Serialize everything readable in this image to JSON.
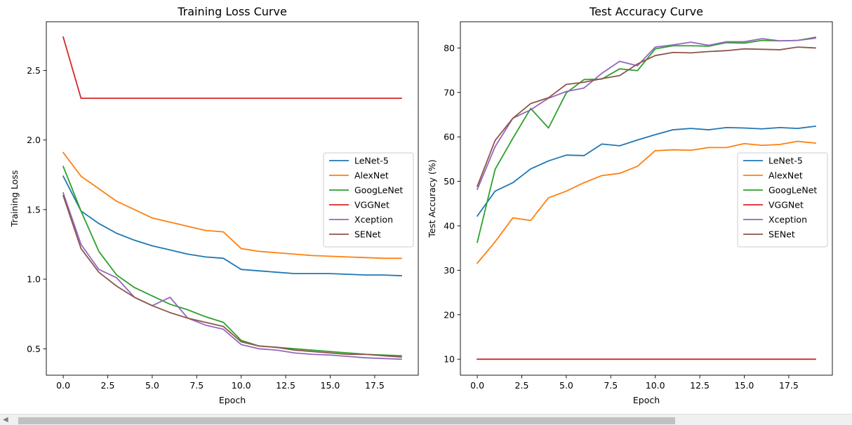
{
  "chart_data": [
    {
      "type": "line",
      "title": "Training Loss Curve",
      "xlabel": "Epoch",
      "ylabel": "Training Loss",
      "xlim": [
        -0.95,
        19.95
      ],
      "ylim": [
        0.31,
        2.85
      ],
      "xticks": [
        0.0,
        2.5,
        5.0,
        7.5,
        10.0,
        12.5,
        15.0,
        17.5
      ],
      "xtick_labels": [
        "0.0",
        "2.5",
        "5.0",
        "7.5",
        "10.0",
        "12.5",
        "15.0",
        "17.5"
      ],
      "yticks": [
        0.5,
        1.0,
        1.5,
        2.0,
        2.5
      ],
      "ytick_labels": [
        "0.5",
        "1.0",
        "1.5",
        "2.0",
        "2.5"
      ],
      "grid": false,
      "legend": "center-right",
      "x": [
        0,
        1,
        2,
        3,
        4,
        5,
        6,
        7,
        8,
        9,
        10,
        11,
        12,
        13,
        14,
        15,
        16,
        17,
        18,
        19
      ],
      "series": [
        {
          "name": "LeNet-5",
          "color": "#1f77b4",
          "values": [
            1.74,
            1.49,
            1.4,
            1.33,
            1.28,
            1.24,
            1.21,
            1.18,
            1.16,
            1.15,
            1.07,
            1.06,
            1.05,
            1.04,
            1.04,
            1.04,
            1.035,
            1.03,
            1.03,
            1.025
          ]
        },
        {
          "name": "AlexNet",
          "color": "#ff7f0e",
          "values": [
            1.91,
            1.74,
            1.65,
            1.56,
            1.5,
            1.44,
            1.41,
            1.38,
            1.35,
            1.34,
            1.22,
            1.2,
            1.19,
            1.18,
            1.17,
            1.165,
            1.16,
            1.155,
            1.15,
            1.15
          ]
        },
        {
          "name": "GoogLeNet",
          "color": "#2ca02c",
          "values": [
            1.81,
            1.49,
            1.2,
            1.03,
            0.94,
            0.88,
            0.82,
            0.78,
            0.73,
            0.69,
            0.56,
            0.52,
            0.51,
            0.5,
            0.49,
            0.48,
            0.47,
            0.46,
            0.455,
            0.45
          ]
        },
        {
          "name": "VGGNet",
          "color": "#d62728",
          "values": [
            2.74,
            2.3,
            2.3,
            2.3,
            2.3,
            2.3,
            2.3,
            2.3,
            2.3,
            2.3,
            2.3,
            2.3,
            2.3,
            2.3,
            2.3,
            2.3,
            2.3,
            2.3,
            2.3,
            2.3
          ]
        },
        {
          "name": "Xception",
          "color": "#9467bd",
          "values": [
            1.62,
            1.25,
            1.07,
            1.01,
            0.87,
            0.81,
            0.87,
            0.72,
            0.67,
            0.64,
            0.53,
            0.5,
            0.49,
            0.47,
            0.46,
            0.455,
            0.445,
            0.435,
            0.43,
            0.425
          ]
        },
        {
          "name": "SENet",
          "color": "#8c564b",
          "values": [
            1.6,
            1.22,
            1.05,
            0.95,
            0.87,
            0.81,
            0.76,
            0.72,
            0.69,
            0.66,
            0.55,
            0.52,
            0.51,
            0.49,
            0.48,
            0.47,
            0.46,
            0.46,
            0.45,
            0.44
          ]
        }
      ]
    },
    {
      "type": "line",
      "title": "Test Accuracy Curve",
      "xlabel": "Epoch",
      "ylabel": "Test Accuracy (%)",
      "xlim": [
        -0.95,
        19.95
      ],
      "ylim": [
        6.4,
        85.9
      ],
      "xticks": [
        0.0,
        2.5,
        5.0,
        7.5,
        10.0,
        12.5,
        15.0,
        17.5
      ],
      "xtick_labels": [
        "0.0",
        "2.5",
        "5.0",
        "7.5",
        "10.0",
        "12.5",
        "15.0",
        "17.5"
      ],
      "yticks": [
        10,
        20,
        30,
        40,
        50,
        60,
        70,
        80
      ],
      "ytick_labels": [
        "10",
        "20",
        "30",
        "40",
        "50",
        "60",
        "70",
        "80"
      ],
      "grid": false,
      "legend": "center-right",
      "x": [
        0,
        1,
        2,
        3,
        4,
        5,
        6,
        7,
        8,
        9,
        10,
        11,
        12,
        13,
        14,
        15,
        16,
        17,
        18,
        19
      ],
      "series": [
        {
          "name": "LeNet-5",
          "color": "#1f77b4",
          "values": [
            42.2,
            47.8,
            49.7,
            52.8,
            54.6,
            55.9,
            55.8,
            58.4,
            58.0,
            59.3,
            60.5,
            61.6,
            61.9,
            61.6,
            62.1,
            62.0,
            61.8,
            62.1,
            61.9,
            62.4
          ]
        },
        {
          "name": "AlexNet",
          "color": "#ff7f0e",
          "values": [
            31.6,
            36.4,
            41.8,
            41.2,
            46.3,
            47.8,
            49.7,
            51.3,
            51.8,
            53.4,
            56.9,
            57.1,
            57.0,
            57.6,
            57.6,
            58.5,
            58.1,
            58.3,
            59.0,
            58.6
          ]
        },
        {
          "name": "GoogLeNet",
          "color": "#2ca02c",
          "values": [
            36.3,
            52.7,
            59.7,
            66.4,
            62.0,
            69.9,
            72.9,
            73.0,
            75.3,
            74.9,
            79.8,
            80.5,
            80.5,
            80.4,
            81.2,
            81.1,
            81.7,
            81.6,
            81.7,
            82.4
          ]
        },
        {
          "name": "VGGNet",
          "color": "#d62728",
          "values": [
            10,
            10,
            10,
            10,
            10,
            10,
            10,
            10,
            10,
            10,
            10,
            10,
            10,
            10,
            10,
            10,
            10,
            10,
            10,
            10
          ]
        },
        {
          "name": "Xception",
          "color": "#9467bd",
          "values": [
            48.2,
            57.8,
            64.2,
            66.1,
            68.7,
            70.2,
            71.0,
            74.3,
            77.0,
            76.0,
            80.2,
            80.7,
            81.3,
            80.6,
            81.4,
            81.4,
            82.1,
            81.6,
            81.7,
            82.2
          ]
        },
        {
          "name": "SENet",
          "color": "#8c564b",
          "values": [
            48.9,
            59.2,
            64.2,
            67.5,
            68.8,
            71.8,
            72.3,
            73.1,
            73.8,
            76.4,
            78.3,
            79.0,
            78.9,
            79.2,
            79.4,
            79.8,
            79.7,
            79.6,
            80.2,
            80.0
          ]
        }
      ]
    }
  ]
}
